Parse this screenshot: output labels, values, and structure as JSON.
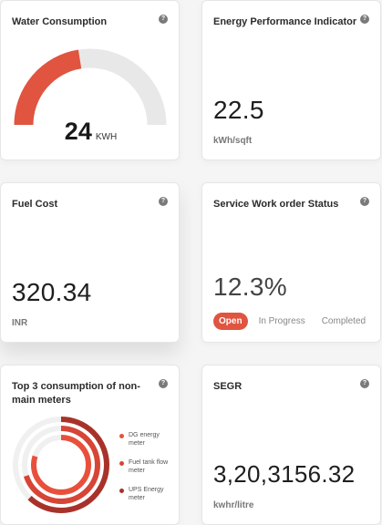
{
  "help_glyph": "?",
  "water": {
    "title": "Water Consumption",
    "value": "24",
    "unit": "KWH",
    "gauge_fraction": 0.45,
    "fill_color": "#e05440",
    "track_color": "#e8e8e8"
  },
  "energy": {
    "title": "Energy Performance Indicator",
    "value": "22.5",
    "unit": "kWh/sqft"
  },
  "fuel": {
    "title": "Fuel Cost",
    "value": "320.34",
    "unit": "INR"
  },
  "service": {
    "title": "Service Work order Status",
    "value": "12.3%",
    "tabs": [
      "Open",
      "In Progress",
      "Completed"
    ],
    "active_tab": "Open"
  },
  "meters": {
    "title": "Top 3 consumption of non-main meters",
    "legend": [
      {
        "label": "DG energy meter",
        "color": "#e8503c"
      },
      {
        "label": "Fuel tank flow meter",
        "color": "#d64535"
      },
      {
        "label": "UPS Energy meter",
        "color": "#a8322a"
      }
    ],
    "rings": [
      {
        "fraction": 0.62,
        "color": "#a8322a"
      },
      {
        "fraction": 0.7,
        "color": "#d64535"
      },
      {
        "fraction": 0.8,
        "color": "#e8503c"
      }
    ]
  },
  "segr": {
    "title": "SEGR",
    "value": "3,20,3156.32",
    "unit": "kwhr/litre"
  }
}
